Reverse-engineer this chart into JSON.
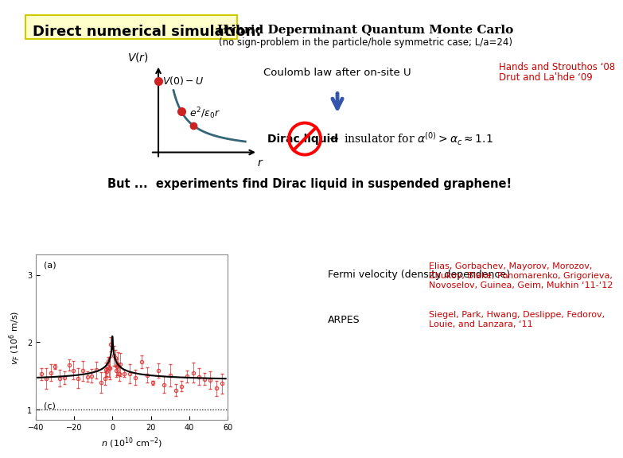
{
  "title": "Direct numerical simulation:",
  "bg_color": "#ffffff",
  "title_color": "#000000",
  "qmc_title": "Hybrid Deperminant Quantum Monte Carlo",
  "qmc_subtitle": "(no sign-problem in the particle/hole symmetric case; L/a=24)",
  "coulomb_text": "Coulomb law after on-site U",
  "ref1_line1": "Hands and Strouthos ‘08",
  "ref1_line2": "Drut and Laʹhde ‘09",
  "but_text": "But ...  experiments find Dirac liquid in suspended graphene!",
  "fermi_label": "Fermi velocity (density dependence)",
  "arpes_label": "ARPES",
  "ref2_line1": "Elias, Gorbachev, Mayorov, Morozov,",
  "ref2_line2": "Zhukov, Blake, Ponomarenko, Grigorieva,",
  "ref2_line3": "Novoselov, Guinea, Geim, Mukhin ‘11-‘12",
  "ref3_line1": "Siegel, Park, Hwang, Deslippe, Fedorov,",
  "ref3_line2": "Louie, and Lanzara, ‘11",
  "red_color": "#cc0000",
  "blue_arrow_color": "#3355aa",
  "plot_line_color": "#336677",
  "dot_color": "#cc2222",
  "axis_color": "#000000"
}
